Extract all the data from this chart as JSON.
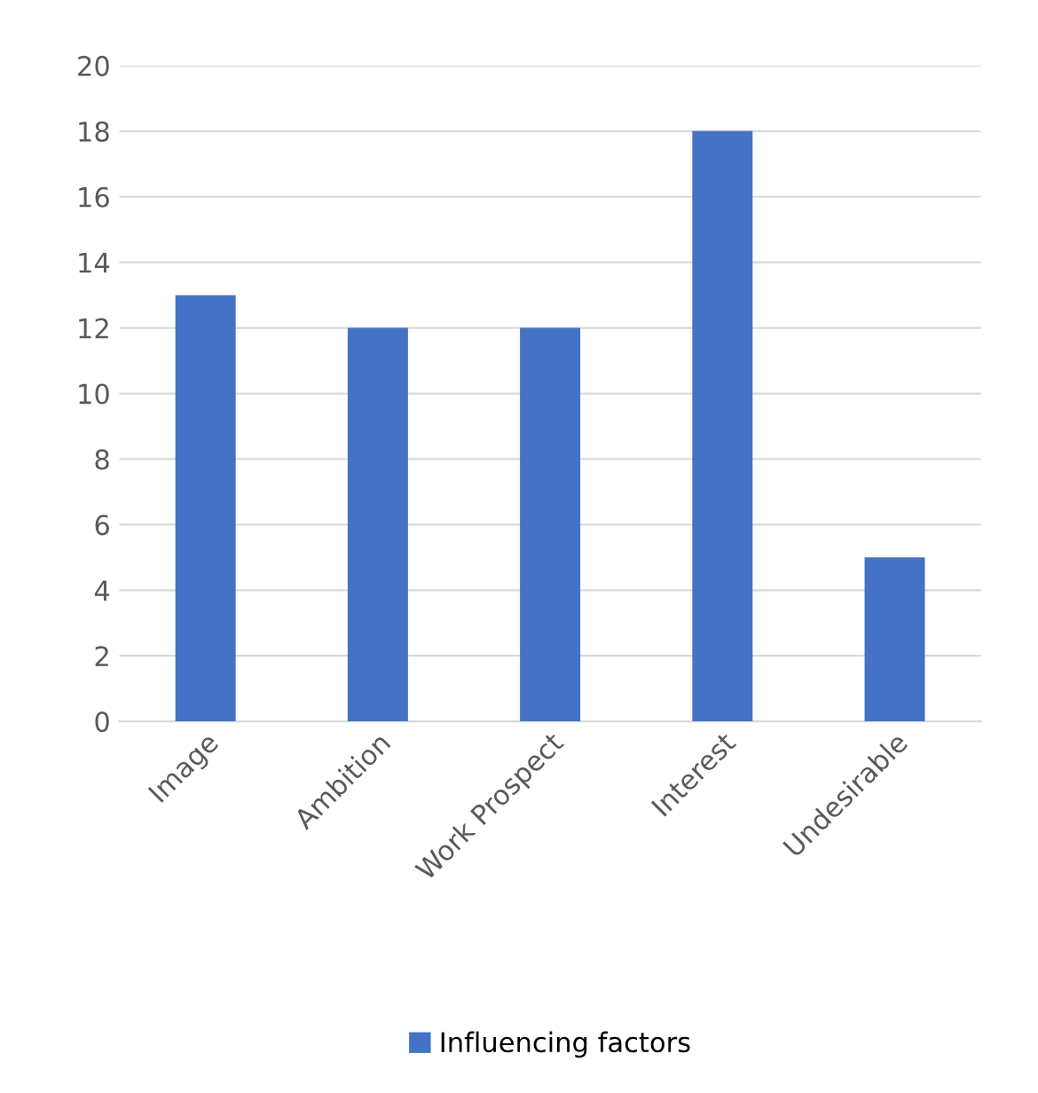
{
  "chart_data": {
    "type": "bar",
    "categories": [
      "Image",
      "Ambition",
      "Work Prospect",
      "Interest",
      "Undesirable"
    ],
    "series": [
      {
        "name": "Influencing factors",
        "color": "#4472c4",
        "values": [
          13,
          12,
          12,
          18,
          5
        ]
      }
    ],
    "ylim": [
      0,
      20
    ],
    "yticks": [
      0,
      2,
      4,
      6,
      8,
      10,
      12,
      14,
      16,
      18,
      20
    ],
    "grid": "y",
    "legend": "bottom"
  }
}
